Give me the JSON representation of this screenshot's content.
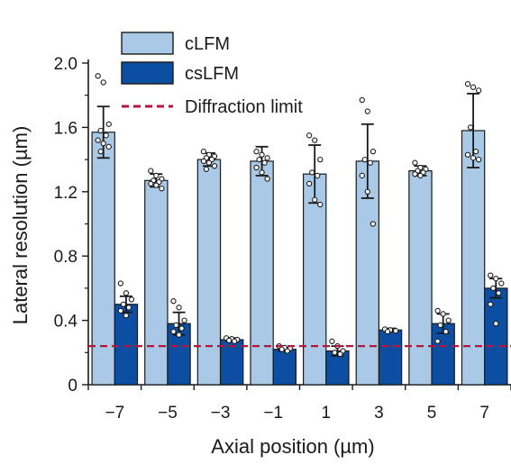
{
  "chart_data": {
    "type": "bar",
    "title": "",
    "xlabel": "Axial position (µm)",
    "ylabel": "Lateral resolution (µm)",
    "ylim": [
      0,
      2.0
    ],
    "yticks": [
      "0",
      "0.4",
      "0.8",
      "1.2",
      "1.6",
      "2.0"
    ],
    "categories": [
      "−7",
      "−5",
      "−3",
      "−1",
      "1",
      "3",
      "5",
      "7"
    ],
    "series": [
      {
        "name": "cLFM",
        "color": "#a9c9e6",
        "values": [
          1.57,
          1.27,
          1.4,
          1.39,
          1.31,
          1.39,
          1.33,
          1.58
        ],
        "errors": [
          0.16,
          0.04,
          0.04,
          0.09,
          0.18,
          0.23,
          0.03,
          0.23
        ],
        "points": [
          [
            1.92,
            1.88,
            1.62,
            1.58,
            1.55,
            1.52,
            1.5,
            1.48,
            1.45
          ],
          [
            1.33,
            1.3,
            1.28,
            1.27,
            1.26,
            1.25,
            1.24,
            1.22
          ],
          [
            1.45,
            1.43,
            1.42,
            1.41,
            1.4,
            1.39,
            1.38,
            1.36,
            1.34
          ],
          [
            1.45,
            1.43,
            1.41,
            1.4,
            1.38,
            1.35,
            1.32,
            1.28
          ],
          [
            1.55,
            1.52,
            1.4,
            1.32,
            1.3,
            1.25,
            1.15,
            1.12
          ],
          [
            1.77,
            1.7,
            1.45,
            1.4,
            1.38,
            1.3,
            1.2,
            1.0
          ],
          [
            1.38,
            1.35,
            1.34,
            1.33,
            1.32,
            1.31,
            1.3
          ],
          [
            1.87,
            1.85,
            1.83,
            1.6,
            1.45,
            1.43,
            1.41,
            1.4
          ]
        ]
      },
      {
        "name": "csLFM",
        "color": "#0b4ea2",
        "values": [
          0.5,
          0.38,
          0.28,
          0.22,
          0.21,
          0.34,
          0.38,
          0.6
        ],
        "errors": [
          0.05,
          0.07,
          0.01,
          0.01,
          0.03,
          0.01,
          0.06,
          0.06
        ],
        "points": [
          [
            0.63,
            0.57,
            0.53,
            0.5,
            0.48,
            0.46,
            0.43
          ],
          [
            0.52,
            0.48,
            0.4,
            0.37,
            0.35,
            0.33,
            0.31
          ],
          [
            0.29,
            0.285,
            0.28,
            0.275,
            0.27
          ],
          [
            0.24,
            0.23,
            0.225,
            0.22,
            0.21
          ],
          [
            0.27,
            0.24,
            0.21,
            0.2,
            0.19
          ],
          [
            0.345,
            0.34,
            0.335,
            0.33
          ],
          [
            0.46,
            0.44,
            0.4,
            0.37,
            0.33,
            0.27
          ],
          [
            0.68,
            0.66,
            0.63,
            0.6,
            0.57,
            0.5,
            0.38
          ]
        ]
      }
    ],
    "reference_line": {
      "name": "Diffraction limit",
      "value": 0.24,
      "color": "#b5163f",
      "style": "dashed"
    },
    "legend": {
      "position": "top-center",
      "entries": [
        "cLFM",
        "csLFM",
        "Diffraction limit"
      ]
    },
    "grid": false
  }
}
